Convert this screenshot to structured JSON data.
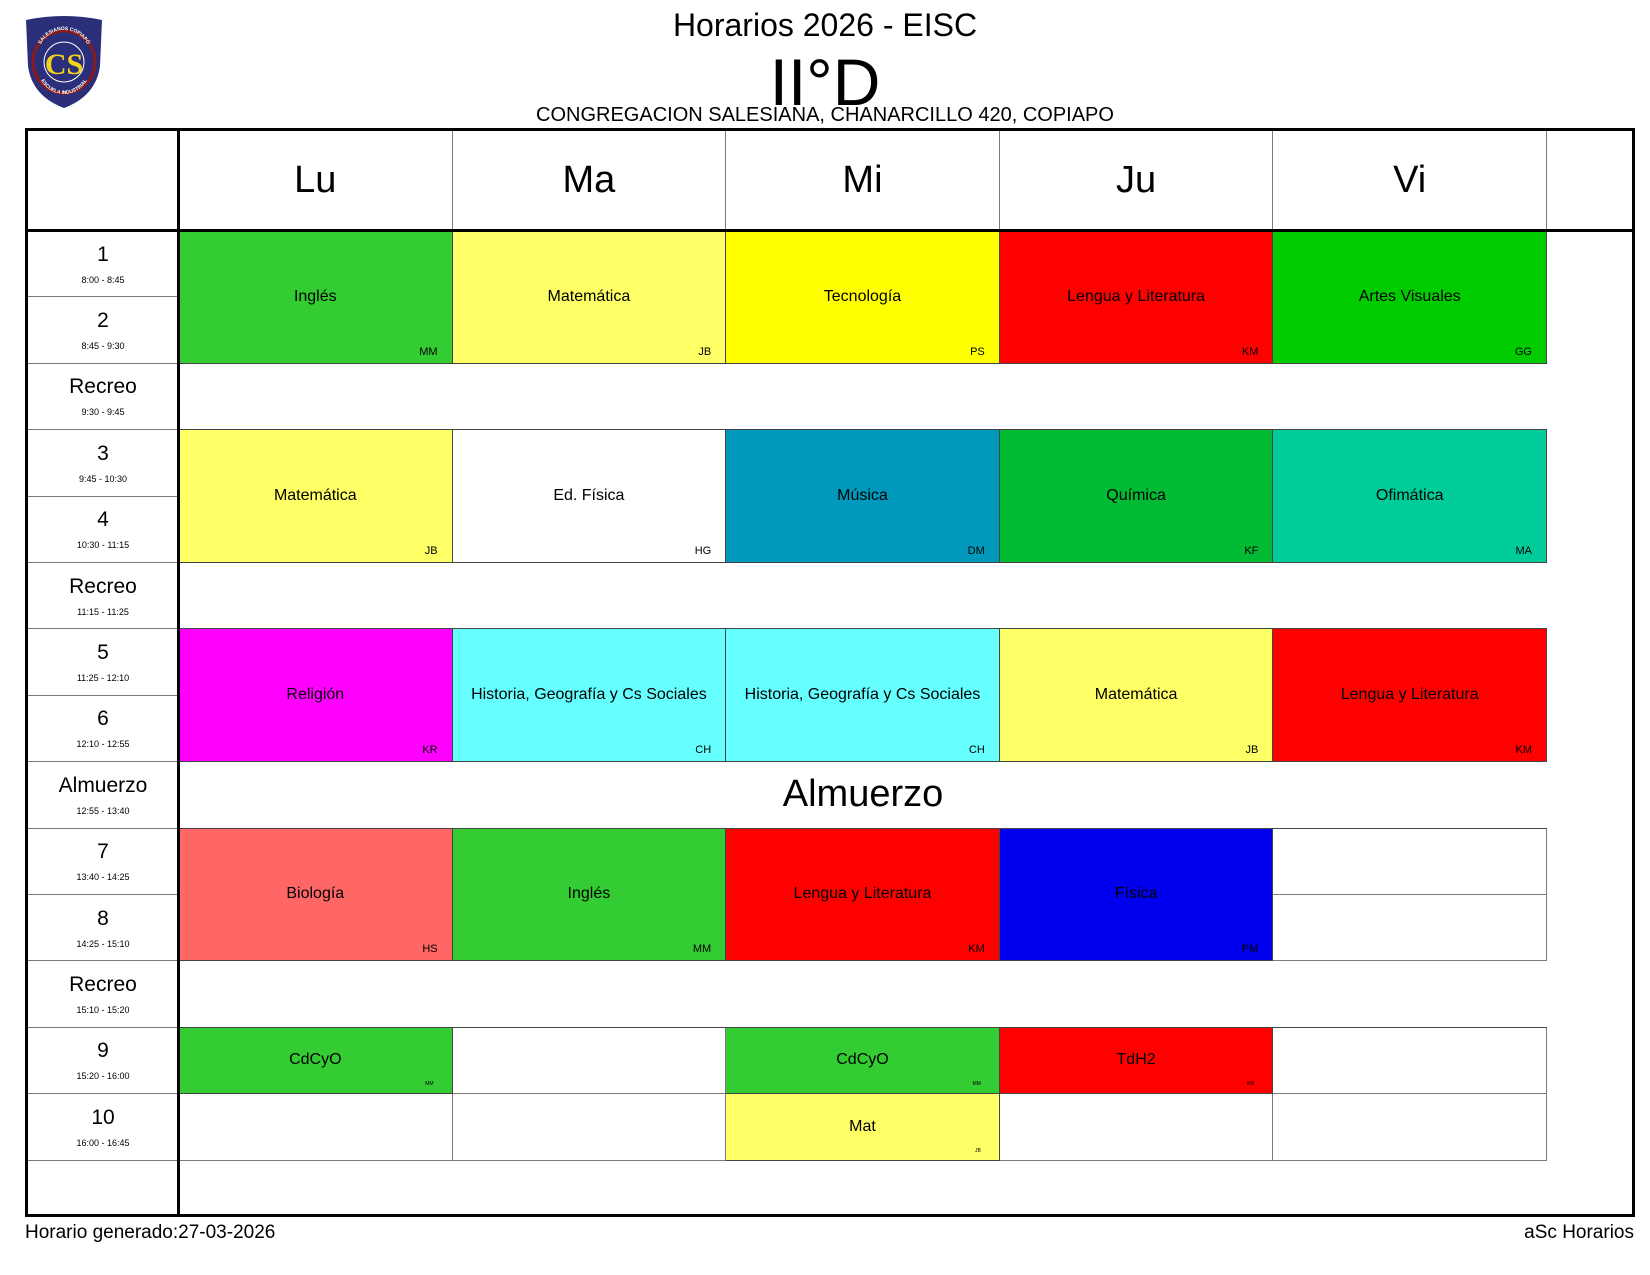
{
  "header": {
    "title": "Horarios 2026 - EISC",
    "class_name": "II°D",
    "address": "CONGREGACION SALESIANA, CHANARCILLO 420, COPIAPO"
  },
  "logo": {
    "top_text": "SALESIANOS COPIAPÓ",
    "initials": "CS",
    "bottom_text": "ESCUELA INDUSTRIAL",
    "colors": {
      "shield": "#2b2f7a",
      "ring": "#8b1a1a",
      "letters": "#f2d21a"
    }
  },
  "days": [
    "Lu",
    "Ma",
    "Mi",
    "Ju",
    "Vi"
  ],
  "rows": [
    {
      "label": "1",
      "time": "8:00 - 8:45"
    },
    {
      "label": "2",
      "time": "8:45 - 9:30"
    },
    {
      "label": "Recreo",
      "time": "9:30 - 9:45"
    },
    {
      "label": "3",
      "time": "9:45 - 10:30"
    },
    {
      "label": "4",
      "time": "10:30 - 11:15"
    },
    {
      "label": "Recreo",
      "time": "11:15 - 11:25"
    },
    {
      "label": "5",
      "time": "11:25 - 12:10"
    },
    {
      "label": "6",
      "time": "12:10 - 12:55"
    },
    {
      "label": "Almuerzo",
      "time": "12:55 - 13:40"
    },
    {
      "label": "7",
      "time": "13:40 - 14:25"
    },
    {
      "label": "8",
      "time": "14:25 - 15:10"
    },
    {
      "label": "Recreo",
      "time": "15:10 - 15:20"
    },
    {
      "label": "9",
      "time": "15:20 - 16:00"
    },
    {
      "label": "10",
      "time": "16:00 - 16:45"
    }
  ],
  "bands": [
    {
      "row": 2,
      "text": ""
    },
    {
      "row": 5,
      "text": ""
    },
    {
      "row": 8,
      "text": "Almuerzo"
    },
    {
      "row": 11,
      "text": ""
    }
  ],
  "lessons": [
    {
      "day": 0,
      "row": 0,
      "span": 2,
      "subject": "Inglés",
      "teacher": "MM",
      "color": "#33cc33"
    },
    {
      "day": 1,
      "row": 0,
      "span": 2,
      "subject": "Matemática",
      "teacher": "JB",
      "color": "#ffff66"
    },
    {
      "day": 2,
      "row": 0,
      "span": 2,
      "subject": "Tecnología",
      "teacher": "PS",
      "color": "#ffff00"
    },
    {
      "day": 3,
      "row": 0,
      "span": 2,
      "subject": "Lengua y Literatura",
      "teacher": "KM",
      "color": "#ff0000"
    },
    {
      "day": 4,
      "row": 0,
      "span": 2,
      "subject": "Artes Visuales",
      "teacher": "GG",
      "color": "#00cc00"
    },
    {
      "day": 0,
      "row": 3,
      "span": 2,
      "subject": "Matemática",
      "teacher": "JB",
      "color": "#ffff66"
    },
    {
      "day": 1,
      "row": 3,
      "span": 2,
      "subject": "Ed. Física",
      "teacher": "HG",
      "color": "#ffffff"
    },
    {
      "day": 2,
      "row": 3,
      "span": 2,
      "subject": "Música",
      "teacher": "DM",
      "color": "#0099bb"
    },
    {
      "day": 3,
      "row": 3,
      "span": 2,
      "subject": "Química",
      "teacher": "KF",
      "color": "#00bb33"
    },
    {
      "day": 4,
      "row": 3,
      "span": 2,
      "subject": "Ofimática",
      "teacher": "MA",
      "color": "#00cc99"
    },
    {
      "day": 0,
      "row": 6,
      "span": 2,
      "subject": "Religión",
      "teacher": "KR",
      "color": "#ff00ff"
    },
    {
      "day": 1,
      "row": 6,
      "span": 2,
      "subject": "Historia, Geografía y Cs Sociales",
      "teacher": "CH",
      "color": "#66ffff"
    },
    {
      "day": 2,
      "row": 6,
      "span": 2,
      "subject": "Historia, Geografía y Cs Sociales",
      "teacher": "CH",
      "color": "#66ffff"
    },
    {
      "day": 3,
      "row": 6,
      "span": 2,
      "subject": "Matemática",
      "teacher": "JB",
      "color": "#ffff66"
    },
    {
      "day": 4,
      "row": 6,
      "span": 2,
      "subject": "Lengua y Literatura",
      "teacher": "KM",
      "color": "#ff0000"
    },
    {
      "day": 0,
      "row": 9,
      "span": 2,
      "subject": "Biología",
      "teacher": "HS",
      "color": "#ff6666"
    },
    {
      "day": 1,
      "row": 9,
      "span": 2,
      "subject": "Inglés",
      "teacher": "MM",
      "color": "#33cc33"
    },
    {
      "day": 2,
      "row": 9,
      "span": 2,
      "subject": "Lengua y Literatura",
      "teacher": "KM",
      "color": "#ff0000"
    },
    {
      "day": 3,
      "row": 9,
      "span": 2,
      "subject": "Física",
      "teacher": "PM",
      "color": "#0000ee"
    },
    {
      "day": 0,
      "row": 12,
      "span": 1,
      "subject": "CdCyO",
      "teacher": "MM",
      "color": "#33cc33",
      "small": true
    },
    {
      "day": 2,
      "row": 12,
      "span": 1,
      "subject": "CdCyO",
      "teacher": "MM",
      "color": "#33cc33",
      "small": true
    },
    {
      "day": 3,
      "row": 12,
      "span": 1,
      "subject": "TdH2",
      "teacher": "KM",
      "color": "#ff0000",
      "small": true
    },
    {
      "day": 2,
      "row": 13,
      "span": 1,
      "subject": "Mat",
      "teacher": "JB",
      "color": "#ffff66",
      "small": true
    }
  ],
  "footer": {
    "generated": "Horario generado:27-03-2026",
    "software": "aSc Horarios"
  }
}
